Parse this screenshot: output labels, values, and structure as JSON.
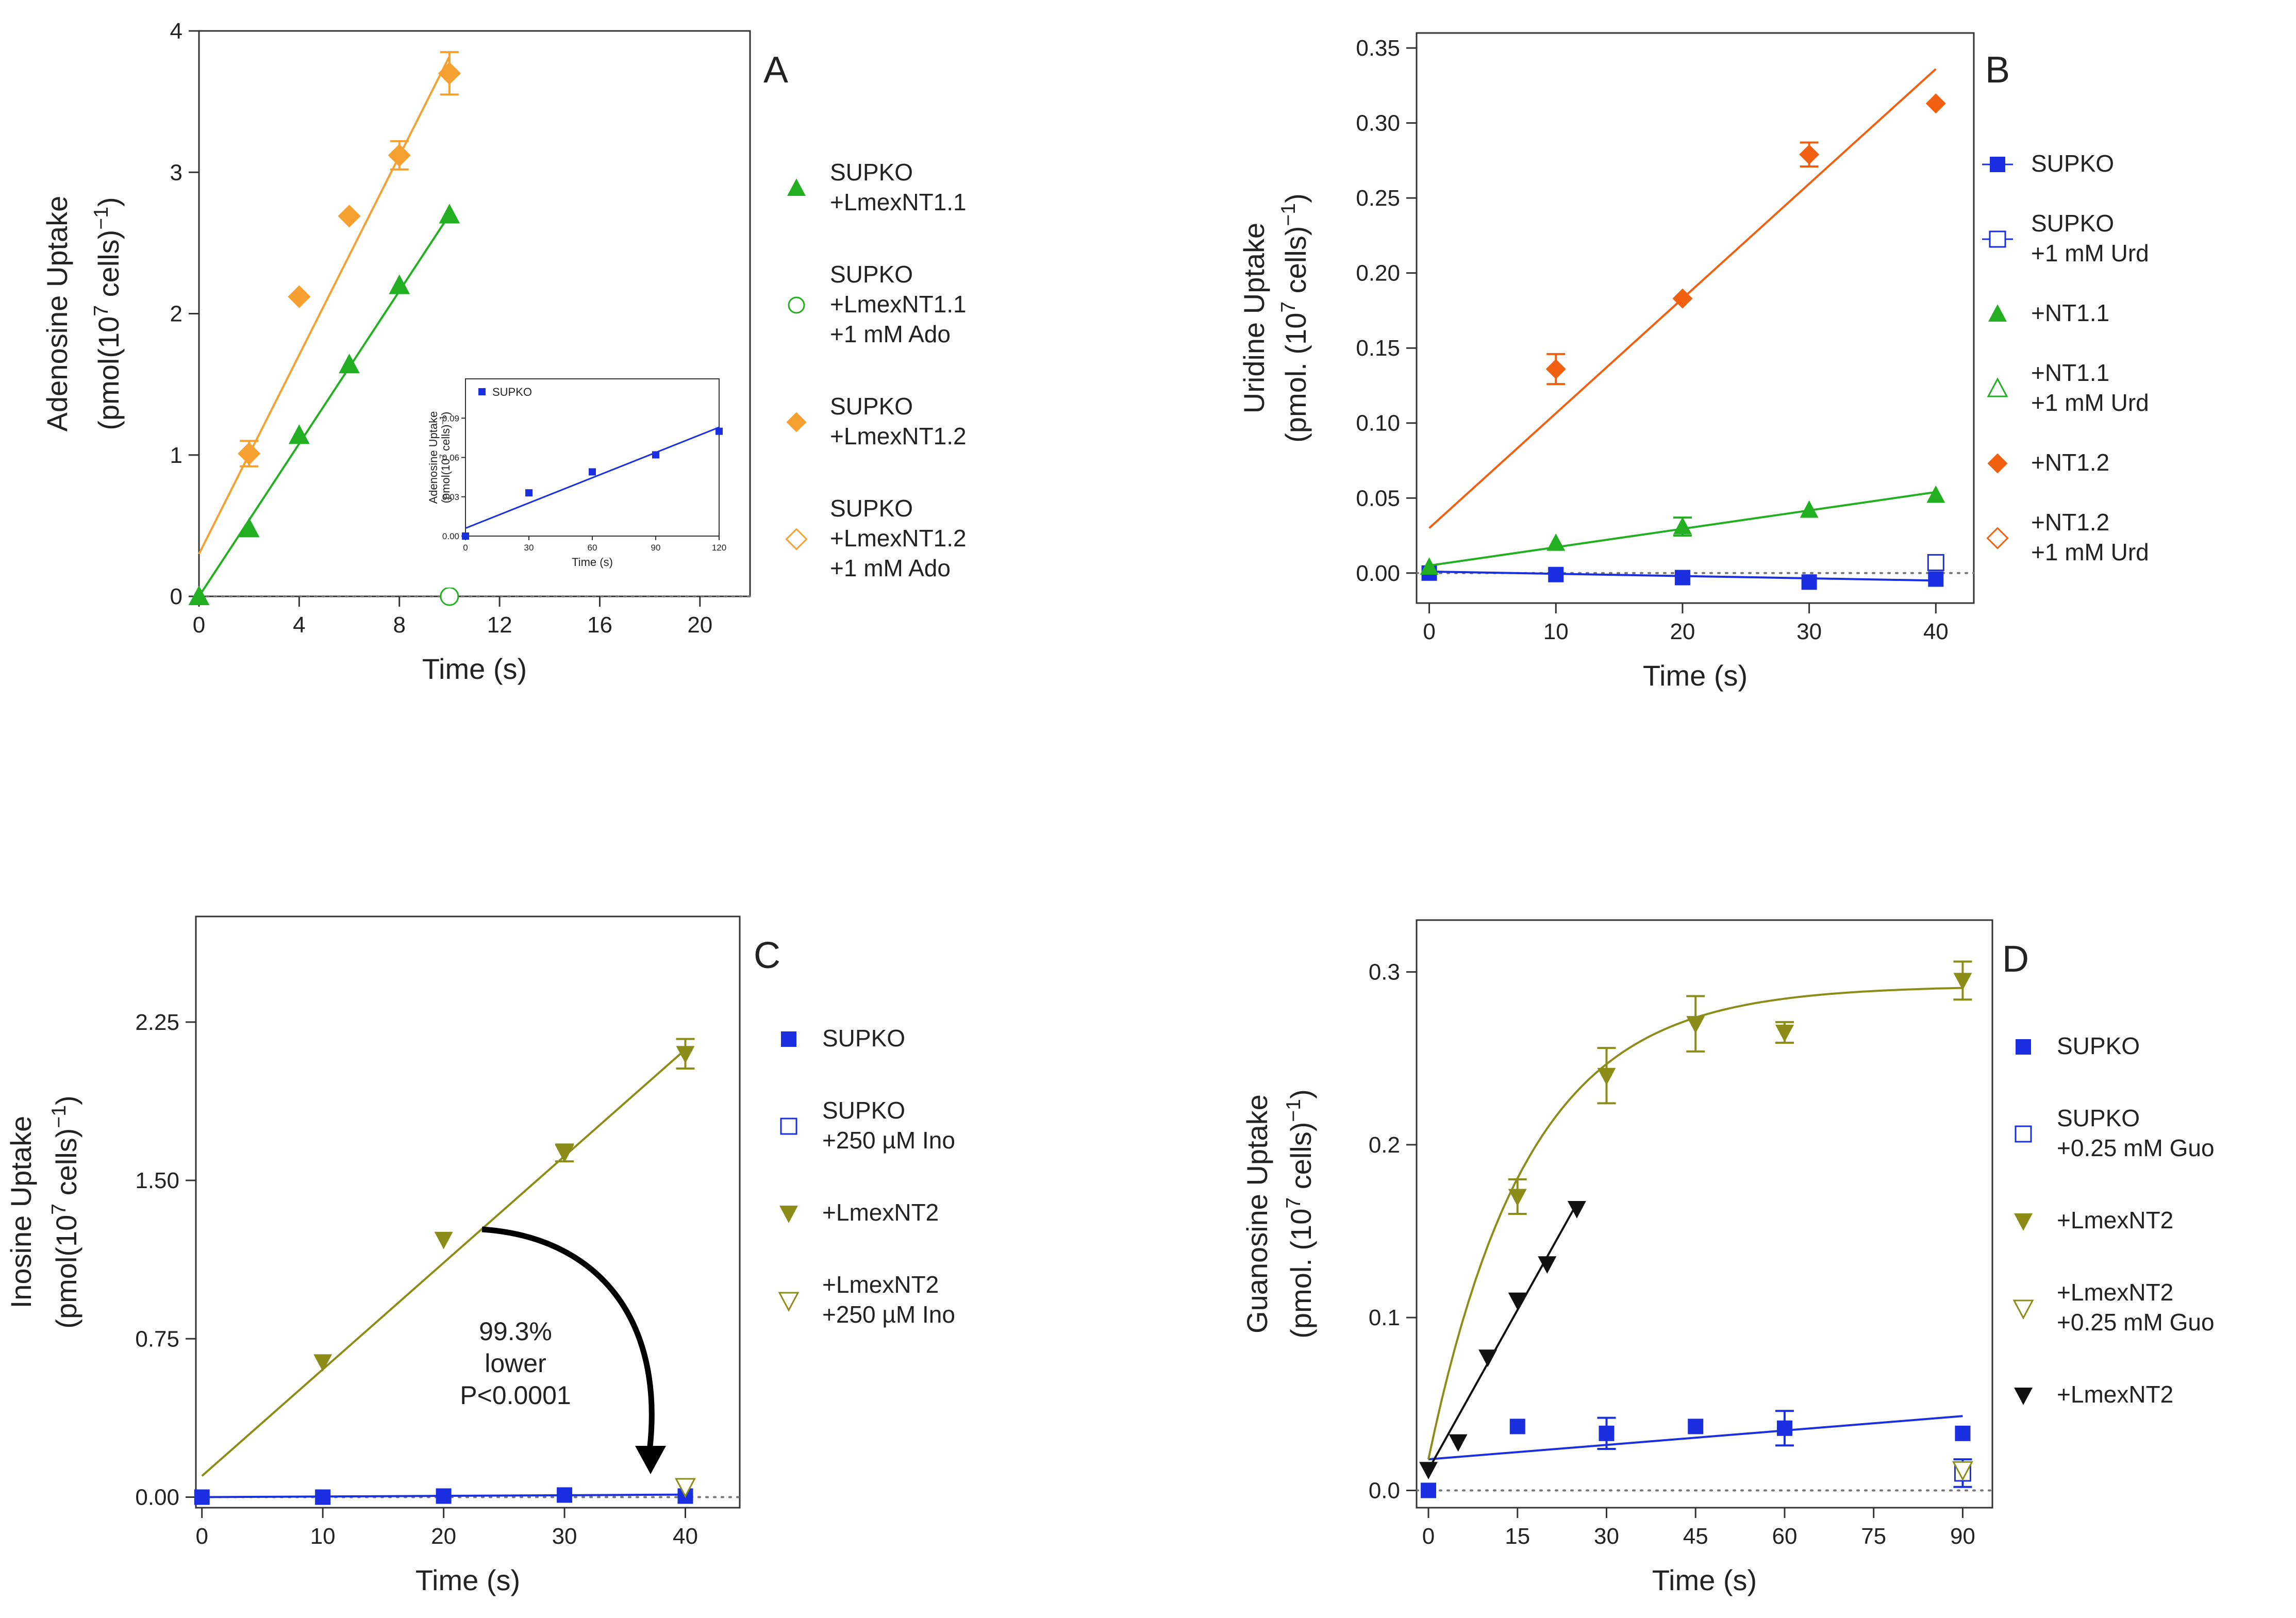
{
  "chart_data": [
    {
      "panel": "A",
      "type": "scatter",
      "xlabel": "Time (s)",
      "ylabel_line1": "Adenosine Uptake",
      "ylabel_line2": "(pmol(10^7 cells)^-1)",
      "xlim": [
        0,
        22
      ],
      "ylim": [
        0,
        4
      ],
      "xticks": [
        0,
        4,
        8,
        12,
        16,
        20
      ],
      "yticks": [
        0,
        1,
        2,
        3,
        4
      ],
      "series": [
        {
          "name_lines": [
            "SUPKO",
            "+LmexNT1.1"
          ],
          "color": "#22b022",
          "marker": "triangle",
          "filled": true,
          "x": [
            0,
            2,
            4,
            6,
            8,
            10
          ],
          "y": [
            0.0,
            0.48,
            1.14,
            1.64,
            2.2,
            2.7
          ],
          "fit": {
            "type": "linear",
            "x": [
              0,
              10
            ],
            "y": [
              0.0,
              2.7
            ]
          }
        },
        {
          "name_lines": [
            "SUPKO",
            "+LmexNT1.1",
            "+1 mM Ado"
          ],
          "color": "#22b022",
          "marker": "circle",
          "filled": false,
          "x": [
            10
          ],
          "y": [
            0.0
          ]
        },
        {
          "name_lines": [
            "SUPKO",
            "+LmexNT1.2"
          ],
          "color": "#f5a030",
          "marker": "diamond",
          "filled": true,
          "x": [
            2,
            4,
            6,
            8,
            10
          ],
          "y": [
            1.01,
            2.12,
            2.69,
            3.12,
            3.7
          ],
          "err": [
            0.09,
            0,
            0,
            0.1,
            0.15
          ],
          "fit": {
            "type": "linear",
            "x": [
              0,
              10
            ],
            "y": [
              0.3,
              3.82
            ]
          }
        },
        {
          "name_lines": [
            "SUPKO",
            "+LmexNT1.2",
            "+1 mM Ado"
          ],
          "color": "#f5a030",
          "marker": "diamond",
          "filled": false,
          "x": [],
          "y": []
        }
      ],
      "inset": {
        "ylabel_line1": "Adenosine Uptake",
        "ylabel_line2": "(pmol(10^7 cells)^-1)",
        "xlabel": "Time (s)",
        "xlim": [
          0,
          120
        ],
        "ylim": [
          0,
          0.12
        ],
        "xticks": [
          0,
          30,
          60,
          90,
          120
        ],
        "yticks": [
          "0.00",
          "0.03",
          "0.06",
          "0.09"
        ],
        "series": [
          {
            "name": "SUPKO",
            "color": "#1a2fe0",
            "marker": "square",
            "x": [
              0,
              30,
              60,
              90,
              120
            ],
            "y": [
              0.0,
              0.033,
              0.049,
              0.062,
              0.08
            ],
            "fit": {
              "x": [
                0,
                120
              ],
              "y": [
                0.006,
                0.083
              ]
            }
          }
        ]
      }
    },
    {
      "panel": "B",
      "type": "scatter",
      "xlabel": "Time (s)",
      "ylabel_line1": "Uridine Uptake",
      "ylabel_line2": "(pmol. (10^7 cells)^-1)",
      "xlim": [
        -1,
        43
      ],
      "ylim": [
        -0.02,
        0.36
      ],
      "xticks": [
        0,
        10,
        20,
        30,
        40
      ],
      "yticks": [
        "0.00",
        "0.05",
        "0.10",
        "0.15",
        "0.20",
        "0.25",
        "0.30",
        "0.35"
      ],
      "series": [
        {
          "name_lines": [
            "SUPKO"
          ],
          "color": "#1a2fe0",
          "marker": "square",
          "filled": true,
          "x": [
            0,
            10,
            20,
            30,
            40
          ],
          "y": [
            0.0,
            -0.001,
            -0.003,
            -0.006,
            -0.004
          ],
          "fit": {
            "type": "linear",
            "x": [
              0,
              40
            ],
            "y": [
              0.001,
              -0.005
            ]
          }
        },
        {
          "name_lines": [
            "SUPKO",
            "+1 mM Urd"
          ],
          "color": "#1a2fe0",
          "marker": "square",
          "filled": false,
          "x": [
            40
          ],
          "y": [
            0.007
          ]
        },
        {
          "name_lines": [
            "+NT1.1"
          ],
          "color": "#22b022",
          "marker": "triangle",
          "filled": true,
          "x": [
            0,
            10,
            20,
            30,
            40
          ],
          "y": [
            0.004,
            0.02,
            0.031,
            0.042,
            0.052
          ],
          "err": [
            0,
            0,
            0.006,
            0,
            0
          ],
          "fit": {
            "type": "linear",
            "x": [
              0,
              40
            ],
            "y": [
              0.005,
              0.054
            ]
          }
        },
        {
          "name_lines": [
            "+NT1.1",
            "+1 mM Urd"
          ],
          "color": "#22b022",
          "marker": "triangle",
          "filled": false,
          "x": [],
          "y": []
        },
        {
          "name_lines": [
            "+NT1.2"
          ],
          "color": "#f06010",
          "marker": "diamond",
          "filled": true,
          "x": [
            10,
            20,
            30,
            40
          ],
          "y": [
            0.136,
            0.183,
            0.279,
            0.313
          ],
          "err": [
            0.01,
            0,
            0.008,
            0
          ],
          "fit": {
            "type": "linear",
            "x": [
              0,
              40
            ],
            "y": [
              0.03,
              0.336
            ]
          }
        },
        {
          "name_lines": [
            "+NT1.2",
            "+1 mM Urd"
          ],
          "color": "#f06010",
          "marker": "diamond",
          "filled": false,
          "x": [],
          "y": []
        }
      ]
    },
    {
      "panel": "C",
      "type": "scatter",
      "xlabel": "Time (s)",
      "ylabel_line1": "Inosine Uptake",
      "ylabel_line2": "(pmol(10^7 cells)^-1)",
      "xlim": [
        -0.5,
        44.5
      ],
      "ylim": [
        -0.05,
        2.75
      ],
      "xticks": [
        0,
        10,
        20,
        30,
        40
      ],
      "yticks": [
        "0.00",
        "0.75",
        "1.50",
        "2.25"
      ],
      "series": [
        {
          "name_lines": [
            "SUPKO"
          ],
          "color": "#1a2fe0",
          "marker": "square",
          "filled": true,
          "x": [
            0,
            10,
            20,
            30,
            40
          ],
          "y": [
            0.0,
            0.0,
            0.005,
            0.01,
            0.005
          ],
          "fit": {
            "type": "linear",
            "x": [
              0,
              40
            ],
            "y": [
              0.0,
              0.012
            ]
          }
        },
        {
          "name_lines": [
            "SUPKO",
            "+250 µM Ino"
          ],
          "color": "#1a2fe0",
          "marker": "square",
          "filled": false,
          "x": [],
          "y": []
        },
        {
          "name_lines": [
            "+LmexNT2"
          ],
          "color": "#8c8c18",
          "marker": "triangle-down",
          "filled": true,
          "x": [
            10,
            20,
            30,
            40
          ],
          "y": [
            0.64,
            1.22,
            1.63,
            2.1
          ],
          "err": [
            0,
            0,
            0.04,
            0.07
          ],
          "fit": {
            "type": "linear",
            "x": [
              0,
              40
            ],
            "y": [
              0.1,
              2.12
            ]
          }
        },
        {
          "name_lines": [
            "+LmexNT2",
            "+250 µM Ino"
          ],
          "color": "#8c8c18",
          "marker": "triangle-down",
          "filled": false,
          "x": [
            40
          ],
          "y": [
            0.05
          ]
        }
      ],
      "annotation_lines": [
        "99.3%",
        "lower",
        "P<0.0001"
      ]
    },
    {
      "panel": "D",
      "type": "scatter",
      "xlabel": "Time (s)",
      "ylabel_line1": "Guanosine Uptake",
      "ylabel_line2": "(pmol. (10^7 cells)^-1)",
      "xlim": [
        -2,
        95
      ],
      "ylim": [
        -0.01,
        0.33
      ],
      "xticks": [
        0,
        15,
        30,
        45,
        60,
        75,
        90
      ],
      "yticks": [
        "0.0",
        "0.1",
        "0.2",
        "0.3"
      ],
      "series": [
        {
          "name_lines": [
            "SUPKO"
          ],
          "color": "#1a2fe0",
          "marker": "square",
          "filled": true,
          "x": [
            0,
            15,
            30,
            45,
            60,
            90
          ],
          "y": [
            0.0,
            0.037,
            0.033,
            0.037,
            0.036,
            0.033
          ],
          "err": [
            0,
            0,
            0.009,
            0,
            0.01,
            0
          ],
          "fit": {
            "type": "linear",
            "x": [
              0,
              90
            ],
            "y": [
              0.018,
              0.043
            ]
          }
        },
        {
          "name_lines": [
            "SUPKO",
            "+0.25 mM Guo"
          ],
          "color": "#1a2fe0",
          "marker": "square",
          "filled": false,
          "x": [
            90
          ],
          "y": [
            0.01
          ],
          "err": [
            0.008
          ]
        },
        {
          "name_lines": [
            "+LmexNT2"
          ],
          "color": "#8c8c18",
          "marker": "triangle-down",
          "filled": true,
          "x": [
            15,
            30,
            45,
            60,
            90
          ],
          "y": [
            0.17,
            0.24,
            0.27,
            0.265,
            0.295
          ],
          "err": [
            0.01,
            0.016,
            0.016,
            0.006,
            0.011
          ],
          "fit": {
            "type": "hyperbolic",
            "x0": 0,
            "x1": 90,
            "ymax": 0.292,
            "k": 0.06,
            "y0": 0.018
          }
        },
        {
          "name_lines": [
            "+LmexNT2",
            "+0.25 mM Guo"
          ],
          "color": "#8c8c18",
          "marker": "triangle-down",
          "filled": false,
          "x": [
            90
          ],
          "y": [
            0.012
          ]
        },
        {
          "name_lines": [
            "+LmexNT2"
          ],
          "color": "#111111",
          "marker": "triangle-down",
          "filled": true,
          "x": [
            0,
            5,
            10,
            15,
            20,
            25
          ],
          "y": [
            0.012,
            0.028,
            0.077,
            0.11,
            0.131,
            0.163
          ],
          "fit": {
            "type": "linear",
            "x": [
              0,
              25
            ],
            "y": [
              0.012,
              0.166
            ]
          }
        }
      ]
    }
  ]
}
